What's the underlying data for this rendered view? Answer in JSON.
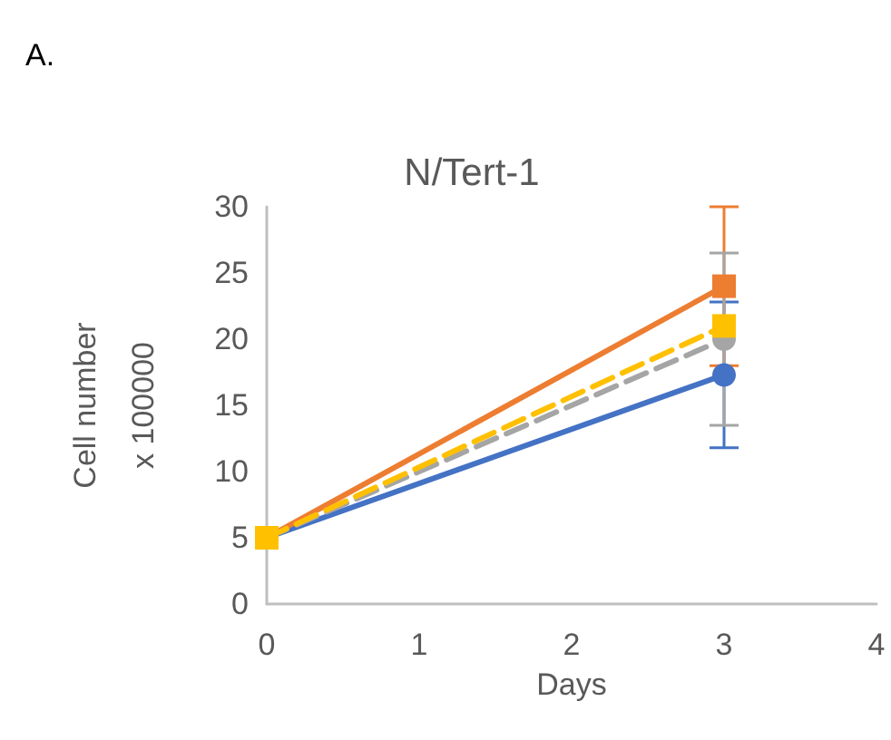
{
  "chart_data": {
    "type": "line",
    "title": "N/Tert-1",
    "xlabel": "Days",
    "ylabel": "Cell number\nx 100000",
    "annotations": [
      "A."
    ],
    "x": [
      0,
      3
    ],
    "xlim": [
      0,
      4
    ],
    "xticks": [
      0,
      1,
      2,
      3,
      4
    ],
    "ylim": [
      0,
      30
    ],
    "yticks": [
      0,
      5,
      10,
      15,
      20,
      25,
      30
    ],
    "grid": false,
    "series": [
      {
        "color": "#4472c4",
        "values": [
          5,
          17.3
        ],
        "errors": [
          null,
          5.5
        ],
        "marker": "circle",
        "line_style": "solid"
      },
      {
        "color": "#ed7d31",
        "values": [
          5,
          24
        ],
        "errors": [
          null,
          6
        ],
        "marker": "square",
        "line_style": "solid"
      },
      {
        "color": "#a5a5a5",
        "values": [
          5,
          20
        ],
        "errors": [
          null,
          6.5
        ],
        "marker": "circle",
        "line_style": "dashed"
      },
      {
        "color": "#ffc000",
        "values": [
          5,
          21
        ],
        "errors": [
          null,
          null
        ],
        "marker": "square",
        "line_style": "dashed"
      }
    ]
  }
}
